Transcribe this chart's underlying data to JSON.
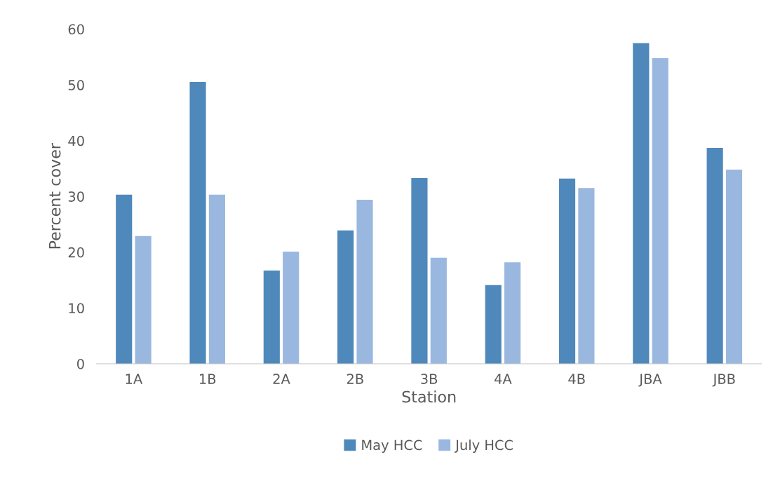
{
  "chart_data": {
    "type": "bar",
    "xlabel": "Station",
    "ylabel": "Percent cover",
    "categories": [
      "1A",
      "1B",
      "2A",
      "2B",
      "3B",
      "4A",
      "4B",
      "JBA",
      "JBB"
    ],
    "series": [
      {
        "name": "May HCC",
        "color": "#4f88bb",
        "values": [
          30.3,
          50.5,
          16.7,
          23.9,
          33.3,
          14.1,
          33.2,
          57.5,
          38.7
        ]
      },
      {
        "name": "July HCC",
        "color": "#9ab8df",
        "values": [
          22.9,
          30.3,
          20.1,
          29.4,
          19.0,
          18.2,
          31.5,
          54.8,
          34.8
        ]
      }
    ],
    "ylim": [
      0,
      60
    ],
    "yticks": [
      0,
      10,
      20,
      30,
      40,
      50,
      60
    ],
    "grid": false,
    "legend": "bottom"
  }
}
